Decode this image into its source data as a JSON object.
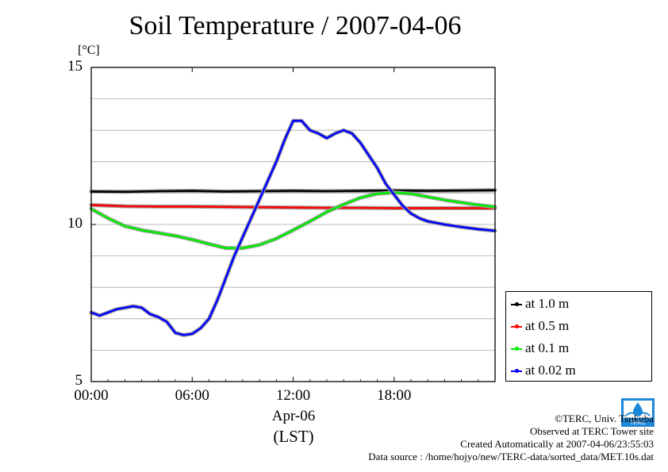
{
  "chart_data": {
    "type": "line",
    "title": "Soil Temperature / 2007-04-06",
    "ylabel": "[°C]",
    "xlabel": "Apr-06",
    "xlabel2": "(LST)",
    "ylim": [
      5,
      15
    ],
    "xlim": [
      0,
      24
    ],
    "yticks": [
      "5",
      "10",
      "15"
    ],
    "ytick_values": [
      5,
      10,
      15
    ],
    "xticks": [
      "00:00",
      "06:00",
      "12:00",
      "18:00"
    ],
    "xtick_values": [
      0,
      6,
      12,
      18
    ],
    "grid": true,
    "legend_position": "right-bottom-outside",
    "series": [
      {
        "name": "at 1.0 m",
        "color": "#000000",
        "x": [
          0,
          2,
          4,
          6,
          8,
          10,
          12,
          14,
          16,
          18,
          20,
          22,
          24
        ],
        "y": [
          11.05,
          11.04,
          11.06,
          11.07,
          11.05,
          11.06,
          11.07,
          11.06,
          11.07,
          11.08,
          11.07,
          11.08,
          11.09
        ]
      },
      {
        "name": "at 0.5 m",
        "color": "#ff0000",
        "x": [
          0,
          2,
          4,
          6,
          8,
          10,
          12,
          14,
          16,
          18,
          20,
          22,
          24
        ],
        "y": [
          10.62,
          10.58,
          10.57,
          10.57,
          10.56,
          10.55,
          10.54,
          10.53,
          10.53,
          10.52,
          10.52,
          10.52,
          10.52
        ]
      },
      {
        "name": "at 0.1 m",
        "color": "#00ee00",
        "x": [
          0,
          1,
          2,
          3,
          4,
          5,
          6,
          7,
          8,
          9,
          10,
          11,
          12,
          13,
          14,
          15,
          16,
          17,
          18,
          19,
          20,
          21,
          22,
          23,
          24
        ],
        "y": [
          10.5,
          10.2,
          9.95,
          9.82,
          9.73,
          9.64,
          9.52,
          9.38,
          9.25,
          9.25,
          9.35,
          9.55,
          9.82,
          10.1,
          10.4,
          10.64,
          10.85,
          10.98,
          11.02,
          10.98,
          10.88,
          10.78,
          10.7,
          10.62,
          10.56
        ]
      },
      {
        "name": "at 0.02 m",
        "color": "#0000ff",
        "x": [
          0,
          0.5,
          1,
          1.5,
          2,
          2.5,
          3,
          3.5,
          4,
          4.5,
          5,
          5.5,
          6,
          6.5,
          7,
          7.5,
          8,
          8.5,
          9,
          9.5,
          10,
          10.5,
          11,
          11.5,
          12,
          12.5,
          13,
          13.5,
          14,
          14.5,
          15,
          15.5,
          16,
          16.5,
          17,
          17.5,
          18,
          18.5,
          19,
          19.5,
          20,
          21,
          22,
          23,
          24
        ],
        "y": [
          7.2,
          7.1,
          7.2,
          7.3,
          7.35,
          7.4,
          7.35,
          7.15,
          7.05,
          6.9,
          6.55,
          6.48,
          6.52,
          6.7,
          7.0,
          7.6,
          8.3,
          9.0,
          9.6,
          10.2,
          10.8,
          11.4,
          12.0,
          12.7,
          13.3,
          13.3,
          13.0,
          12.9,
          12.75,
          12.9,
          13.0,
          12.9,
          12.6,
          12.2,
          11.8,
          11.3,
          10.95,
          10.6,
          10.35,
          10.2,
          10.1,
          10.0,
          9.92,
          9.85,
          9.8
        ]
      }
    ]
  },
  "credits": {
    "copyright": "©TERC, Univ. Tsukuba",
    "observed": "Observed at TERC Tower site",
    "created": "Created Automatically at 2007-04-06/23:55:03",
    "source": "Data source : /home/hojyo/new/TERC-data/sorted_data/MET.10s.dat",
    "logo_text": "TERC"
  }
}
